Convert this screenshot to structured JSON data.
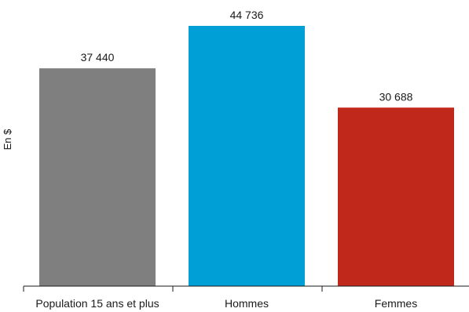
{
  "chart_data": {
    "type": "bar",
    "categories": [
      "Population 15 ans et plus",
      "Hommes",
      "Femmes"
    ],
    "values": [
      37440,
      44736,
      30688
    ],
    "value_labels": [
      "37 440",
      "44 736",
      "30 688"
    ],
    "colors": [
      "#7f7f7f",
      "#009fd6",
      "#c0281c"
    ],
    "title": "",
    "xlabel": "",
    "ylabel": "En $",
    "ylim": [
      0,
      47000
    ],
    "grid": false,
    "legend": "none"
  }
}
